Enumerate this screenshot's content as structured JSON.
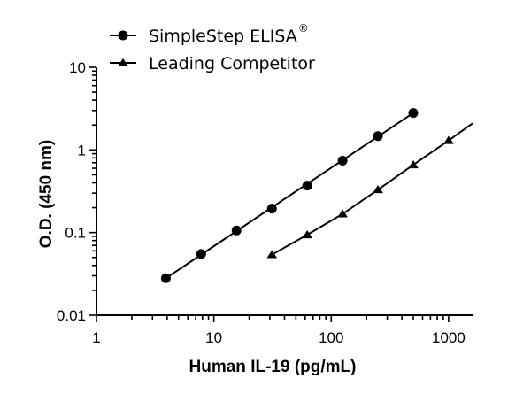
{
  "chart_data": {
    "type": "line",
    "scale": {
      "x": "log",
      "y": "log"
    },
    "xlabel": "Human  IL-19 (pg/mL)",
    "ylabel": "O.D. (450 nm)",
    "xlim": [
      1,
      1600
    ],
    "ylim": [
      0.01,
      10
    ],
    "x_ticks": [
      {
        "value": 1,
        "label": "1"
      },
      {
        "value": 10,
        "label": "10"
      },
      {
        "value": 100,
        "label": "100"
      },
      {
        "value": 1000,
        "label": "1000"
      }
    ],
    "y_ticks": [
      {
        "value": 0.01,
        "label": "0.01"
      },
      {
        "value": 0.1,
        "label": "0.1"
      },
      {
        "value": 1,
        "label": "1"
      },
      {
        "value": 10,
        "label": "10"
      }
    ],
    "legend": {
      "placement": "top-left",
      "entries": [
        {
          "label": "SimpleStep ELISA",
          "superscript": "®",
          "marker": "circle"
        },
        {
          "label": "Leading Competitor",
          "superscript": "",
          "marker": "triangle"
        }
      ]
    },
    "series": [
      {
        "name": "SimpleStep ELISA®",
        "marker": "circle",
        "x": [
          3.9,
          7.8,
          15.6,
          31.25,
          62.5,
          125,
          250,
          500
        ],
        "y": [
          0.028,
          0.055,
          0.106,
          0.195,
          0.37,
          0.74,
          1.47,
          2.8
        ],
        "fit_x": [
          3.9,
          500
        ],
        "fit_y": [
          0.028,
          2.8
        ]
      },
      {
        "name": "Leading Competitor",
        "marker": "triangle",
        "x": [
          31.25,
          62.5,
          125,
          250,
          500,
          1000
        ],
        "y": [
          0.054,
          0.094,
          0.168,
          0.33,
          0.66,
          1.3
        ],
        "fit_x": [
          31.25,
          62.5,
          125,
          250,
          500,
          1000,
          1600
        ],
        "fit_y": [
          0.054,
          0.094,
          0.168,
          0.33,
          0.66,
          1.3,
          2.1
        ]
      }
    ]
  }
}
